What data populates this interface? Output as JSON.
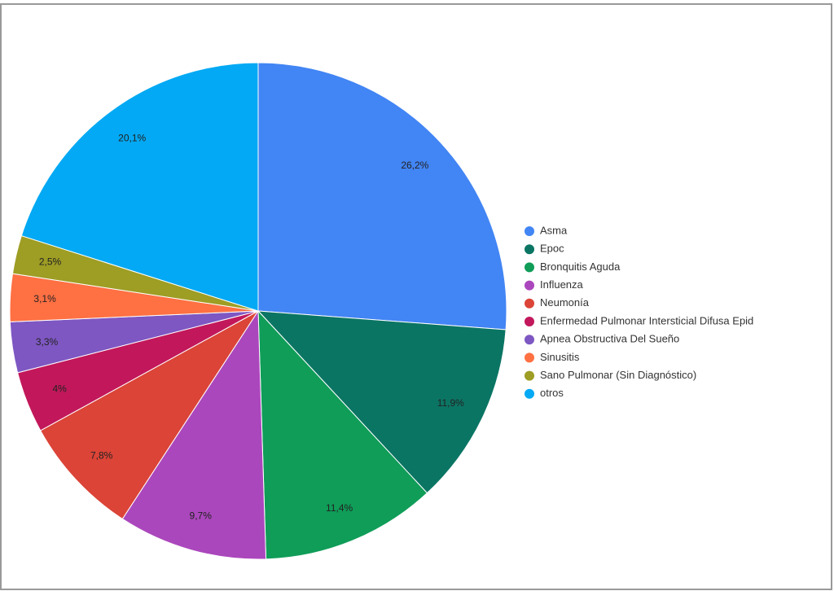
{
  "chart_data": {
    "type": "pie",
    "categories": [
      "Asma",
      "Epoc",
      "Bronquitis Aguda",
      "Influenza",
      "Neumonía",
      "Enfermedad Pulmonar Intersticial Difusa Epid",
      "Apnea Obstructiva Del Sueño",
      "Sinusitis",
      "Sano Pulmonar (Sin Diagnóstico)",
      "otros"
    ],
    "values": [
      26.2,
      11.9,
      11.4,
      9.7,
      7.8,
      4,
      3.3,
      3.1,
      2.5,
      20.1
    ],
    "value_labels": [
      "26,2%",
      "11,9%",
      "11,4%",
      "9,7%",
      "7,8%",
      "4%",
      "3,3%",
      "3,1%",
      "2,5%",
      "20,1%"
    ],
    "colors": [
      "#4285f4",
      "#0b7564",
      "#0f9d58",
      "#ab47bc",
      "#db4437",
      "#c2185b",
      "#7e57c2",
      "#ff7043",
      "#9e9d24",
      "#03a9f4"
    ],
    "legend": "right"
  }
}
